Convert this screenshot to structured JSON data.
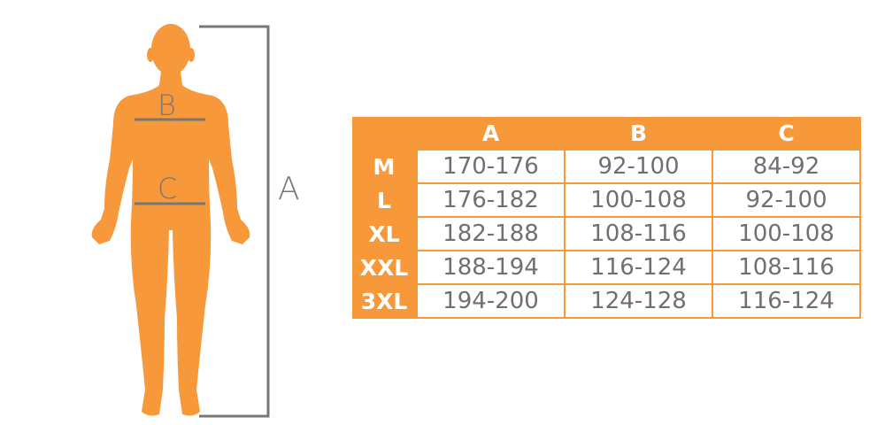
{
  "diagram": {
    "labels": {
      "height": "A",
      "chest": "B",
      "waist": "C"
    },
    "colors": {
      "accent": "#F7993A",
      "text": "#707070",
      "line": "#777777"
    }
  },
  "size_table": {
    "columns": [
      "A",
      "B",
      "C"
    ],
    "rows": [
      {
        "size": "M",
        "values": [
          "170-176",
          "92-100",
          "84-92"
        ]
      },
      {
        "size": "L",
        "values": [
          "176-182",
          "100-108",
          "92-100"
        ]
      },
      {
        "size": "XL",
        "values": [
          "182-188",
          "108-116",
          "100-108"
        ]
      },
      {
        "size": "XXL",
        "values": [
          "188-194",
          "116-124",
          "108-116"
        ]
      },
      {
        "size": "3XL",
        "values": [
          "194-200",
          "124-128",
          "116-124"
        ]
      }
    ]
  }
}
